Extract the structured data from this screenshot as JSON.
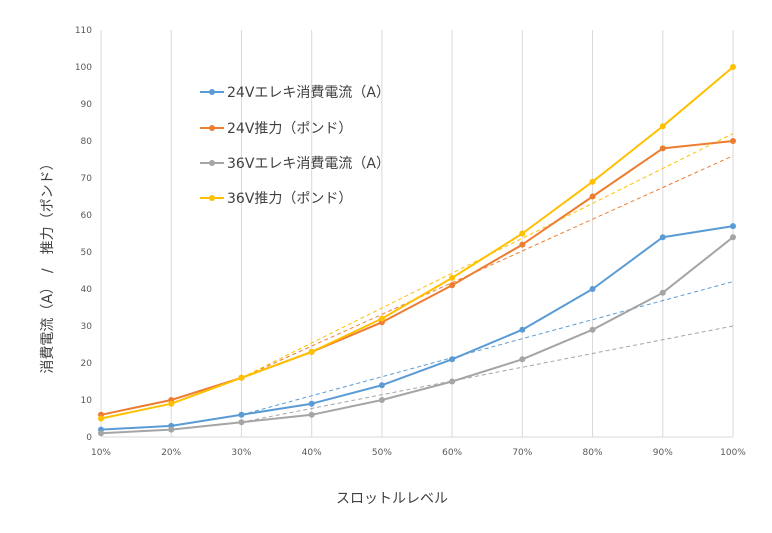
{
  "chart_data": {
    "type": "line",
    "title": "",
    "xlabel": "スロットルレベル",
    "ylabel": "消費電流（A）　/　推力（ポンド）",
    "categories": [
      "10%",
      "20%",
      "30%",
      "40%",
      "50%",
      "60%",
      "70%",
      "80%",
      "90%",
      "100%"
    ],
    "yticks": [
      0,
      10,
      20,
      30,
      40,
      50,
      60,
      70,
      80,
      90,
      100,
      110
    ],
    "ylim": [
      0,
      110
    ],
    "grid": "vertical",
    "legend_position": "top-left",
    "series": [
      {
        "name": "24Vエレキ消費電流（A）",
        "color": "#5B9BD5",
        "values": [
          2,
          3,
          6,
          9,
          14,
          21,
          29,
          40,
          54,
          57
        ],
        "trend_from": 2
      },
      {
        "name": "24V推力（ポンド）",
        "color": "#ED7D31",
        "values": [
          6,
          10,
          16,
          23,
          31,
          41,
          52,
          65,
          78,
          80
        ],
        "trend_from": 2
      },
      {
        "name": "36Vエレキ消費電流（A）",
        "color": "#A5A5A5",
        "values": [
          1,
          2,
          4,
          6,
          10,
          15,
          21,
          29,
          39,
          54
        ],
        "trend_from": 2
      },
      {
        "name": "36V推力（ポンド）",
        "color": "#FFC000",
        "values": [
          5,
          9,
          16,
          23,
          32,
          43,
          55,
          69,
          84,
          100
        ],
        "trend_from": 2
      }
    ],
    "trendlines": [
      {
        "series": "24Vエレキ消費電流（A）",
        "color": "#5B9BD5",
        "x_from": "30%",
        "y_from": 6,
        "x_to": "100%",
        "y_to": 42
      },
      {
        "series": "24V推力（ポンド）",
        "color": "#ED7D31",
        "x_from": "30%",
        "y_from": 16,
        "x_to": "100%",
        "y_to": 76
      },
      {
        "series": "36Vエレキ消費電流（A）",
        "color": "#A5A5A5",
        "x_from": "30%",
        "y_from": 4,
        "x_to": "100%",
        "y_to": 30
      },
      {
        "series": "36V推力（ポンド）",
        "color": "#FFC000",
        "x_from": "30%",
        "y_from": 16,
        "x_to": "100%",
        "y_to": 82
      }
    ]
  }
}
